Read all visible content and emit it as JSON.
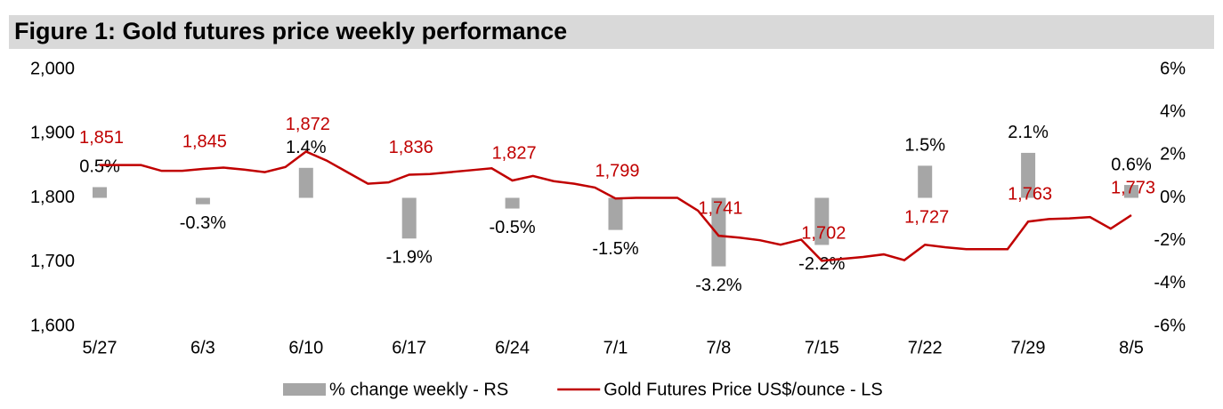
{
  "chart_data": {
    "type": "bar-line",
    "title": "Figure 1: Gold futures price weekly performance",
    "categories": [
      "5/27",
      null,
      null,
      null,
      null,
      "6/3",
      null,
      null,
      null,
      null,
      "6/10",
      null,
      null,
      null,
      null,
      "6/17",
      null,
      null,
      null,
      null,
      "6/24",
      null,
      null,
      null,
      null,
      "7/1",
      null,
      null,
      null,
      null,
      "7/8",
      null,
      null,
      null,
      null,
      "7/15",
      null,
      null,
      null,
      null,
      "7/22",
      null,
      null,
      null,
      null,
      "7/29",
      null,
      null,
      null,
      null,
      "8/5"
    ],
    "series": [
      {
        "name": "% change weekly - RS",
        "type": "bar",
        "axis": "y2",
        "color": "#a6a6a6",
        "values": [
          0.5,
          null,
          null,
          null,
          null,
          -0.3,
          null,
          null,
          null,
          null,
          1.4,
          null,
          null,
          null,
          null,
          -1.9,
          null,
          null,
          null,
          null,
          -0.5,
          null,
          null,
          null,
          null,
          -1.5,
          null,
          null,
          null,
          null,
          -3.2,
          null,
          null,
          null,
          null,
          -2.2,
          null,
          null,
          null,
          null,
          1.5,
          null,
          null,
          null,
          null,
          2.1,
          null,
          null,
          null,
          null,
          0.6
        ],
        "value_labels": [
          "0.5%",
          null,
          null,
          null,
          null,
          "-0.3%",
          null,
          null,
          null,
          null,
          "1.4%",
          null,
          null,
          null,
          null,
          "-1.9%",
          null,
          null,
          null,
          null,
          "-0.5%",
          null,
          null,
          null,
          null,
          "-1.5%",
          null,
          null,
          null,
          null,
          "-3.2%",
          null,
          null,
          null,
          null,
          "-2.2%",
          null,
          null,
          null,
          null,
          "1.5%",
          null,
          null,
          null,
          null,
          "2.1%",
          null,
          null,
          null,
          null,
          "0.6%"
        ]
      },
      {
        "name": "Gold Futures Price US$/ounce - LS",
        "type": "line",
        "color": "#c00000",
        "values": [
          1851,
          1851,
          1851,
          1842,
          1842,
          1845,
          1847,
          1844,
          1840,
          1848,
          1872,
          1858,
          1840,
          1822,
          1824,
          1836,
          1837,
          1840,
          1843,
          1846,
          1827,
          1834,
          1826,
          1822,
          1816,
          1799,
          1800,
          1800,
          1800,
          1780,
          1741,
          1738,
          1734,
          1727,
          1735,
          1702,
          1705,
          1708,
          1712,
          1703,
          1727,
          1723,
          1720,
          1720,
          1720,
          1763,
          1767,
          1768,
          1770,
          1752,
          1773
        ],
        "value_labels": [
          "1,851",
          null,
          null,
          null,
          null,
          "1,845",
          null,
          null,
          null,
          null,
          "1,872",
          null,
          null,
          null,
          null,
          "1,836",
          null,
          null,
          null,
          null,
          "1,827",
          null,
          null,
          null,
          null,
          "1,799",
          null,
          null,
          null,
          null,
          "1,741",
          null,
          null,
          null,
          null,
          "1,702",
          null,
          null,
          null,
          null,
          "1,727",
          null,
          null,
          null,
          null,
          "1,763",
          null,
          null,
          null,
          null,
          "1,773"
        ]
      }
    ],
    "ylim": [
      1600,
      2000
    ],
    "yticks": [
      {
        "value": 1600,
        "label": "1,600"
      },
      {
        "value": 1700,
        "label": "1,700"
      },
      {
        "value": 1800,
        "label": "1,800"
      },
      {
        "value": 1900,
        "label": "1,900"
      },
      {
        "value": 2000,
        "label": "2,000"
      }
    ],
    "y2lim": [
      -6,
      6
    ],
    "y2ticks": [
      {
        "value": -6,
        "label": "-6%"
      },
      {
        "value": -4,
        "label": "-4%"
      },
      {
        "value": -2,
        "label": "-2%"
      },
      {
        "value": 0,
        "label": "0%"
      },
      {
        "value": 2,
        "label": "2%"
      },
      {
        "value": 4,
        "label": "4%"
      },
      {
        "value": 6,
        "label": "6%"
      }
    ],
    "legend": "bottom"
  }
}
